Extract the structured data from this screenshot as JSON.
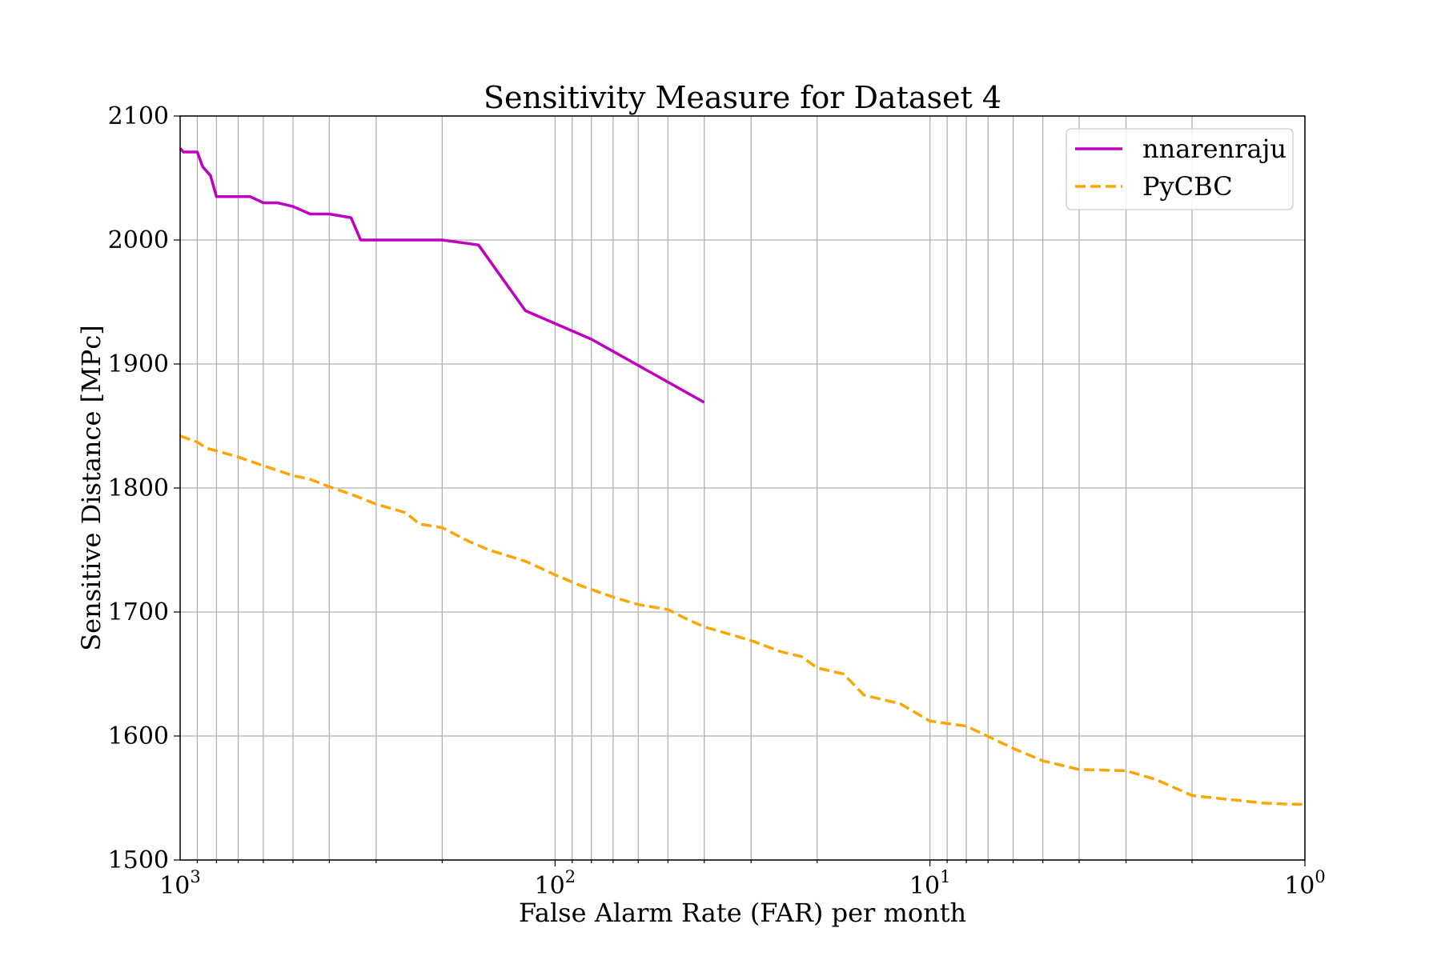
{
  "chart_data": {
    "type": "line",
    "title": "Sensitivity Measure for Dataset 4",
    "xlabel": "False Alarm Rate (FAR) per month",
    "ylabel": "Sensitive Distance [MPc]",
    "x_scale": "log",
    "x_reversed": true,
    "xlim": [
      1000,
      1
    ],
    "ylim": [
      1500,
      2100
    ],
    "grid": true,
    "legend_position": "top-right",
    "x_ticks": [
      {
        "base": "10",
        "exp": "3",
        "value": 1000
      },
      {
        "base": "10",
        "exp": "2",
        "value": 100
      },
      {
        "base": "10",
        "exp": "1",
        "value": 10
      },
      {
        "base": "10",
        "exp": "0",
        "value": 1
      }
    ],
    "y_ticks": [
      1500,
      1600,
      1700,
      1800,
      1900,
      2000,
      2100
    ],
    "series": [
      {
        "name": "nnarenraju",
        "color": "#bf00bf",
        "style": "solid",
        "points": [
          [
            1000,
            2074
          ],
          [
            980,
            2071
          ],
          [
            900,
            2071
          ],
          [
            870,
            2059
          ],
          [
            830,
            2052
          ],
          [
            800,
            2035
          ],
          [
            650,
            2035
          ],
          [
            600,
            2030
          ],
          [
            550,
            2030
          ],
          [
            500,
            2027
          ],
          [
            450,
            2021
          ],
          [
            400,
            2021
          ],
          [
            350,
            2018
          ],
          [
            330,
            2000
          ],
          [
            200,
            2000
          ],
          [
            160,
            1996
          ],
          [
            120,
            1943
          ],
          [
            80,
            1920
          ],
          [
            40,
            1869
          ]
        ]
      },
      {
        "name": "PyCBC",
        "color": "#ffa500",
        "style": "dashed",
        "points": [
          [
            1000,
            1842
          ],
          [
            900,
            1837
          ],
          [
            850,
            1832
          ],
          [
            800,
            1830
          ],
          [
            700,
            1825
          ],
          [
            600,
            1818
          ],
          [
            500,
            1810
          ],
          [
            450,
            1807
          ],
          [
            400,
            1801
          ],
          [
            350,
            1795
          ],
          [
            300,
            1787
          ],
          [
            250,
            1780
          ],
          [
            230,
            1771
          ],
          [
            200,
            1768
          ],
          [
            170,
            1757
          ],
          [
            150,
            1750
          ],
          [
            120,
            1741
          ],
          [
            100,
            1730
          ],
          [
            85,
            1721
          ],
          [
            70,
            1712
          ],
          [
            60,
            1706
          ],
          [
            50,
            1702
          ],
          [
            45,
            1695
          ],
          [
            40,
            1688
          ],
          [
            35,
            1683
          ],
          [
            30,
            1677
          ],
          [
            25,
            1668
          ],
          [
            22,
            1664
          ],
          [
            20,
            1655
          ],
          [
            17,
            1650
          ],
          [
            15,
            1633
          ],
          [
            12,
            1626
          ],
          [
            10,
            1612
          ],
          [
            8,
            1608
          ],
          [
            6,
            1590
          ],
          [
            5,
            1580
          ],
          [
            4,
            1573
          ],
          [
            3,
            1572
          ],
          [
            2.5,
            1565
          ],
          [
            2,
            1552
          ],
          [
            1.5,
            1548
          ],
          [
            1.3,
            1546
          ],
          [
            1.1,
            1545
          ],
          [
            1,
            1545
          ]
        ]
      }
    ]
  }
}
